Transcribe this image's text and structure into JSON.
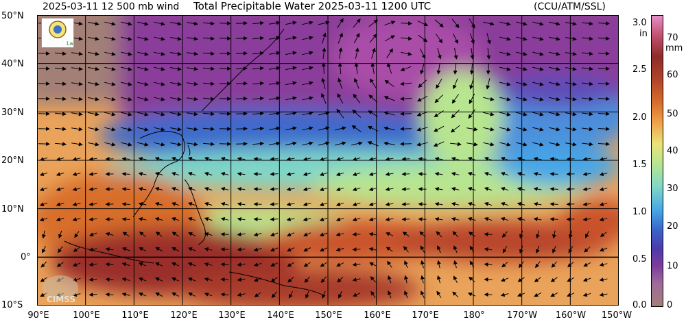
{
  "header": {
    "left": "2025-03-11 12 500 mb wind",
    "title": "Total Precipitable Water  2025-03-11 1200 UTC",
    "right": "(CCU/ATM/SSL)"
  },
  "map": {
    "lat_labels": [
      "50°N",
      "40°N",
      "30°N",
      "20°N",
      "10°N",
      "0°",
      "10°S"
    ],
    "lon_labels": [
      "90°E",
      "100°E",
      "110°E",
      "120°E",
      "130°E",
      "140°E",
      "150°E",
      "160°E",
      "170°E",
      "180°",
      "170°W",
      "160°W",
      "150°W"
    ],
    "extent": {
      "lon_min": 90,
      "lon_max": 210,
      "lat_min": -10,
      "lat_max": 50
    },
    "gridlines": true
  },
  "colorbar": {
    "in_labels": [
      "3.0",
      "2.5",
      "2.0",
      "1.5",
      "1.0",
      "0.5",
      "0.0"
    ],
    "in_unit": "in",
    "mm_labels": [
      "70",
      "60",
      "50",
      "40",
      "30",
      "20",
      "10",
      "0"
    ],
    "mm_unit": "mm"
  },
  "logos": {
    "left_text": "Lab",
    "bottom_text": "CIMSS"
  },
  "colors": {
    "dry": "#a27f77",
    "low": "#7c3c9c",
    "mid_low": "#3a62c9",
    "mid": "#b8e58f",
    "mid_high": "#f0a34a",
    "high": "#8e2c2a"
  }
}
